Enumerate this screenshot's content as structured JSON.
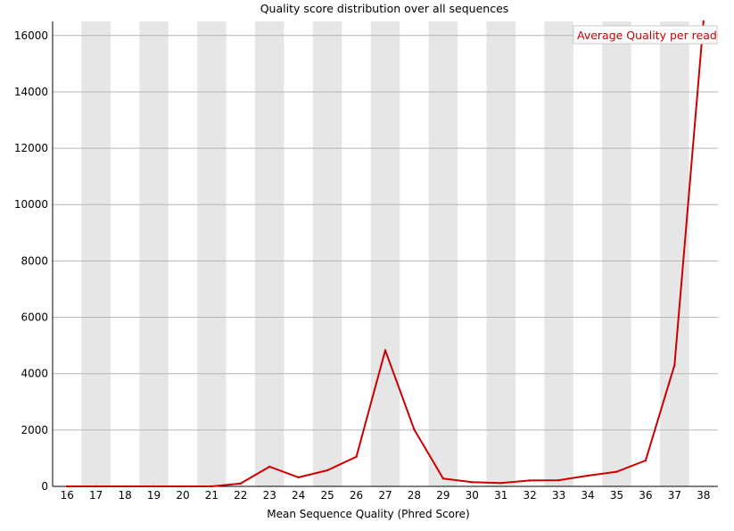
{
  "chart_data": {
    "type": "line",
    "title": "Quality score distribution over all sequences",
    "xlabel": "Mean Sequence Quality (Phred Score)",
    "ylabel": "",
    "categories": [
      "16",
      "17",
      "18",
      "19",
      "20",
      "21",
      "22",
      "23",
      "24",
      "25",
      "26",
      "27",
      "28",
      "29",
      "30",
      "31",
      "32",
      "33",
      "34",
      "35",
      "36",
      "37",
      "38"
    ],
    "yticks": [
      "0",
      "2000",
      "4000",
      "6000",
      "8000",
      "10000",
      "12000",
      "14000",
      "16000"
    ],
    "ylim": [
      0,
      16500
    ],
    "grid": "horizontal",
    "legend_position": "top-right",
    "series": [
      {
        "name": "Average Quality per read",
        "color": "#cc0000",
        "values": [
          0,
          0,
          0,
          0,
          0,
          0,
          100,
          700,
          320,
          570,
          1050,
          4830,
          2020,
          280,
          150,
          120,
          210,
          220,
          380,
          520,
          920,
          4300,
          16500
        ]
      }
    ]
  }
}
